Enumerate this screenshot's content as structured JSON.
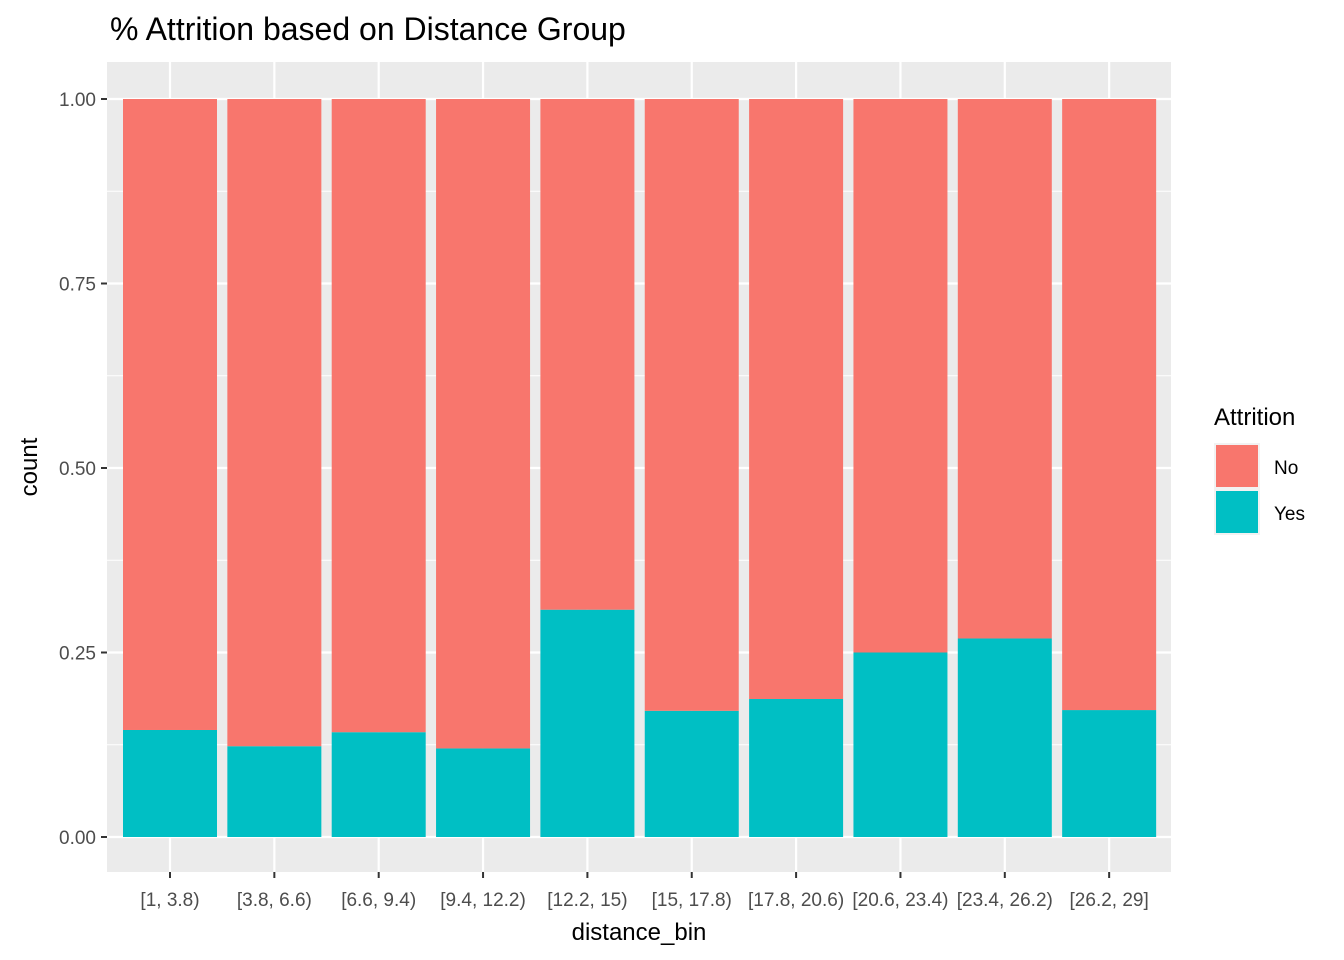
{
  "chart_data": {
    "type": "bar",
    "stacked": true,
    "title": "% Attrition based on Distance Group",
    "xlabel": "distance_bin",
    "ylabel": "count",
    "ylim": [
      0,
      1
    ],
    "yticks": [
      "0.00",
      "0.25",
      "0.50",
      "0.75",
      "1.00"
    ],
    "grid": true,
    "categories": [
      "[1, 3.8)",
      "[3.8, 6.6)",
      "[6.6, 9.4)",
      "[9.4, 12.2)",
      "[12.2, 15)",
      "[15, 17.8)",
      "[17.8, 20.6)",
      "[20.6, 23.4)",
      "[23.4, 26.2)",
      "[26.2, 29]"
    ],
    "series": [
      {
        "name": "No",
        "color": "#F8766D",
        "values": [
          0.855,
          0.877,
          0.858,
          0.88,
          0.692,
          0.829,
          0.813,
          0.75,
          0.731,
          0.828
        ]
      },
      {
        "name": "Yes",
        "color": "#00BFC4",
        "values": [
          0.145,
          0.123,
          0.142,
          0.12,
          0.308,
          0.171,
          0.187,
          0.25,
          0.269,
          0.172
        ]
      }
    ],
    "legend": {
      "title": "Attrition",
      "placement": "right"
    }
  }
}
